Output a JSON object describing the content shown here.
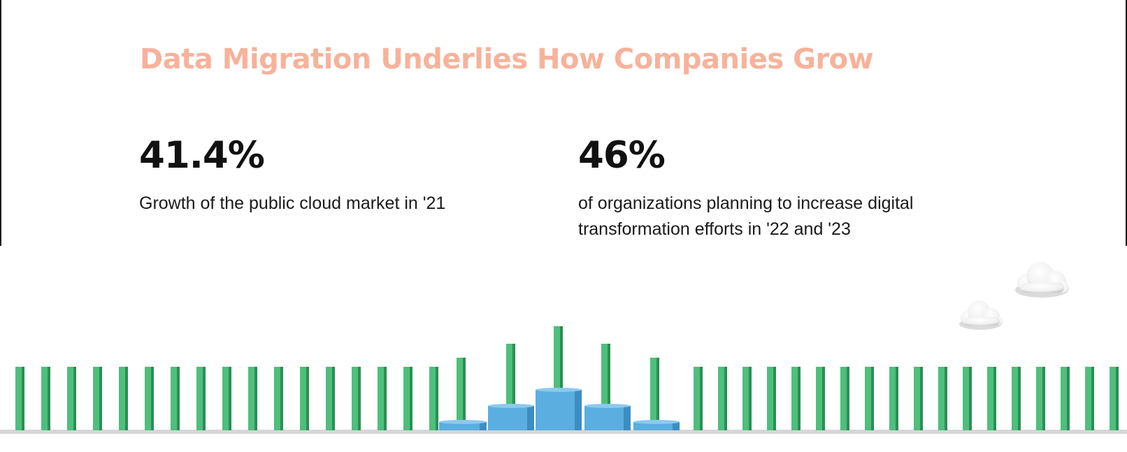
{
  "header": {
    "title": "Data Migration Underlies How Companies Grow"
  },
  "stats": [
    {
      "value": "41.4%",
      "description": "Growth of the public cloud market in '21"
    },
    {
      "value": "46%",
      "description": "of organizations planning to increase digital transformation efforts in '22 and '23"
    }
  ],
  "colors": {
    "title": "#f7b29a",
    "bar_green": "#4fbf7c",
    "bar_green_dark": "#2a8f55",
    "cylinder_blue": "#5aaee0",
    "cylinder_blue_dark": "#3d8dc2",
    "text": "#111111"
  },
  "illustration": {
    "icons": [
      "cloud-icon",
      "cloud-icon"
    ]
  }
}
